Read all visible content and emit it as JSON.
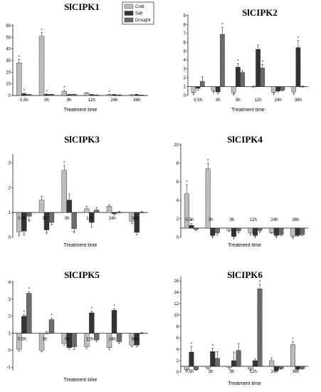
{
  "figure": {
    "x_axis_label": "Treatment time",
    "legend": [
      "Cold",
      "Salt",
      "Drought"
    ]
  },
  "colors": {
    "cold": "#bdbdbd",
    "salt": "#333333",
    "drought": "#6e6e6e"
  },
  "chart_data": [
    {
      "type": "bar",
      "title": "SlCIPK1",
      "categories": [
        "0.5h",
        "3h",
        "9h",
        "12h",
        "24h",
        "36h"
      ],
      "yticks": [
        "0",
        "10",
        "20",
        "30",
        "40",
        "50",
        "60"
      ],
      "ylim": [
        0,
        60
      ],
      "baseline": 0,
      "series": [
        {
          "name": "Cold",
          "values": [
            28,
            51,
            3.5,
            2,
            0.8,
            0.6
          ],
          "errors": [
            3,
            3,
            1,
            0.5,
            0.2,
            0.2
          ],
          "marks": [
            "*",
            "*",
            "*",
            "",
            "*",
            ""
          ]
        },
        {
          "name": "Salt",
          "values": [
            1.5,
            1,
            0.8,
            0.8,
            0.8,
            0.8
          ],
          "errors": [
            0.5,
            0.3,
            0.2,
            0.2,
            0.2,
            0.2
          ],
          "marks": [
            "*",
            "*",
            "",
            "",
            "",
            ""
          ]
        },
        {
          "name": "Drought",
          "values": [
            0.8,
            1,
            1,
            0.5,
            0.5,
            0.4
          ],
          "errors": [
            0.2,
            0.2,
            0.2,
            0.1,
            0.1,
            0.1
          ],
          "marks": [
            "",
            "",
            "",
            "",
            "",
            ""
          ]
        }
      ]
    },
    {
      "type": "bar",
      "title": "SlCIPK2",
      "categories": [
        "0.5h",
        "3h",
        "9h",
        "12h",
        "24h",
        "36h"
      ],
      "yticks": [
        "0",
        "1",
        "2",
        "3",
        "4",
        "5",
        "6",
        "7",
        "8",
        "9"
      ],
      "ylim": [
        0,
        9
      ],
      "baseline": 1,
      "series": [
        {
          "name": "Cold",
          "values": [
            0.35,
            0.55,
            0.3,
            1,
            0.35,
            0.4
          ],
          "errors": [
            0.1,
            0.1,
            0.1,
            0.1,
            0.1,
            0.1
          ],
          "marks": [
            "*",
            "*",
            "*",
            "",
            "*",
            "*"
          ]
        },
        {
          "name": "Salt",
          "values": [
            0.8,
            0.4,
            3.2,
            5.2,
            0.5,
            5.4
          ],
          "errors": [
            0.2,
            0.2,
            0.4,
            0.5,
            0.1,
            0.8
          ],
          "marks": [
            "",
            "",
            "*",
            "",
            "",
            "*"
          ]
        },
        {
          "name": "Drought",
          "values": [
            1.6,
            6.9,
            2.6,
            3.1,
            0.6,
            1
          ],
          "errors": [
            0.5,
            0.8,
            0.2,
            0.4,
            0.1,
            0.1
          ],
          "marks": [
            "",
            "*",
            "",
            "*",
            "",
            ""
          ]
        }
      ]
    },
    {
      "type": "bar",
      "title": "SlCIPK3",
      "categories": [
        "0.5h",
        "3h",
        "9h",
        "12h",
        "24h",
        "36h"
      ],
      "yticks": [
        "0",
        "1",
        "2",
        "3"
      ],
      "ylim": [
        0,
        3.3
      ],
      "baseline": 1,
      "series": [
        {
          "name": "Cold",
          "values": [
            0.22,
            1.5,
            2.7,
            1.15,
            1.25,
            0.65
          ],
          "errors": [
            0.1,
            0.15,
            0.2,
            0.1,
            0.05,
            0.1
          ],
          "marks": [
            "*",
            "",
            "*",
            "",
            "",
            ""
          ]
        },
        {
          "name": "Salt",
          "values": [
            0.25,
            0.3,
            1.5,
            0.6,
            0.95,
            0.2
          ],
          "errors": [
            0.1,
            0.1,
            0.25,
            0.2,
            0.05,
            0.1
          ],
          "marks": [
            "*",
            "*",
            "",
            "",
            "",
            ""
          ]
        },
        {
          "name": "Drought",
          "values": [
            0.85,
            0.6,
            0.35,
            1.1,
            1,
            1
          ],
          "errors": [
            0.15,
            0.1,
            0.1,
            0.1,
            0.05,
            0.05
          ],
          "marks": [
            "*",
            "",
            "*",
            "",
            "",
            ""
          ]
        }
      ]
    },
    {
      "type": "bar",
      "title": "SlCIPK4",
      "categories": [
        "0.5h",
        "3h",
        "9h",
        "12h",
        "24h",
        "36h"
      ],
      "yticks": [
        "0",
        "2",
        "4",
        "6",
        "8",
        "10"
      ],
      "ylim": [
        0,
        10
      ],
      "baseline": 1,
      "series": [
        {
          "name": "Cold",
          "values": [
            4.7,
            7.4,
            0.75,
            0.5,
            0.5,
            0.1
          ],
          "errors": [
            1,
            0.6,
            0.1,
            0.1,
            0.1,
            0.1
          ],
          "marks": [
            "*",
            "*",
            "",
            "*",
            "",
            "*"
          ]
        },
        {
          "name": "Salt",
          "values": [
            1.3,
            0.2,
            0.1,
            0.2,
            0.2,
            0.2
          ],
          "errors": [
            0.2,
            0.1,
            0.1,
            0.1,
            0.1,
            0.1
          ],
          "marks": [
            "*",
            "*",
            "*",
            "*",
            "*",
            ""
          ]
        },
        {
          "name": "Drought",
          "values": [
            0.85,
            0.5,
            0.7,
            0.75,
            0.3,
            0.3
          ],
          "errors": [
            0.1,
            0.1,
            0.1,
            0.1,
            0.1,
            0.1
          ],
          "marks": [
            "",
            "*",
            "*",
            "*",
            "",
            ""
          ]
        }
      ]
    },
    {
      "type": "bar",
      "title": "SlCIPK5",
      "categories": [
        "0.5h",
        "3h",
        "9h",
        "12h",
        "24h",
        "36h"
      ],
      "yticks": [
        "-1",
        "0",
        "1",
        "2",
        "3",
        "4"
      ],
      "ylim": [
        -1.2,
        4
      ],
      "baseline": 1,
      "series": [
        {
          "name": "Cold",
          "values": [
            0.05,
            0,
            0.4,
            0.2,
            0.15,
            0.3
          ],
          "errors": [
            0.1,
            0.1,
            0.1,
            0.1,
            0.1,
            0.1
          ],
          "marks": [
            "",
            "",
            "",
            "",
            "",
            ""
          ]
        },
        {
          "name": "Salt",
          "values": [
            2,
            1,
            0.15,
            2.2,
            2.35,
            0.3
          ],
          "errors": [
            0.1,
            0.1,
            0.1,
            0.1,
            0.1,
            0.1
          ],
          "marks": [
            "*",
            "",
            "",
            "*",
            "*",
            ""
          ]
        },
        {
          "name": "Drought",
          "values": [
            3.35,
            1.8,
            0.2,
            0.6,
            0.5,
            1
          ],
          "errors": [
            0.1,
            0.1,
            0.15,
            0.1,
            0.1,
            0.05
          ],
          "marks": [
            "*",
            "*",
            "",
            "",
            "",
            ""
          ]
        }
      ]
    },
    {
      "type": "bar",
      "title": "SlCIPK6",
      "categories": [
        "0.5h",
        "3h",
        "9h",
        "12h",
        "24h",
        "36h"
      ],
      "yticks": [
        "0",
        "2",
        "4",
        "6",
        "8",
        "10",
        "12",
        "14",
        "16"
      ],
      "ylim": [
        0,
        16.5
      ],
      "baseline": 1,
      "series": [
        {
          "name": "Cold",
          "values": [
            0.4,
            0.7,
            0.8,
            0.5,
            2,
            4.8
          ],
          "errors": [
            0.1,
            0.2,
            0.3,
            0.2,
            0.5,
            0.5
          ],
          "marks": [
            "",
            "",
            "",
            "",
            "",
            "*"
          ]
        },
        {
          "name": "Salt",
          "values": [
            3.5,
            3.6,
            2,
            2,
            0.3,
            0.5
          ],
          "errors": [
            1,
            0.6,
            1.5,
            0.3,
            0.1,
            0.1
          ],
          "marks": [
            "*",
            "*",
            "",
            "",
            "",
            ""
          ]
        },
        {
          "name": "Drought",
          "values": [
            0.4,
            2.4,
            3.8,
            14.6,
            0.6,
            0.6
          ],
          "errors": [
            0.1,
            1.2,
            1.2,
            0.8,
            0.1,
            0.1
          ],
          "marks": [
            "",
            "",
            "",
            "*",
            "",
            ""
          ]
        }
      ]
    }
  ]
}
